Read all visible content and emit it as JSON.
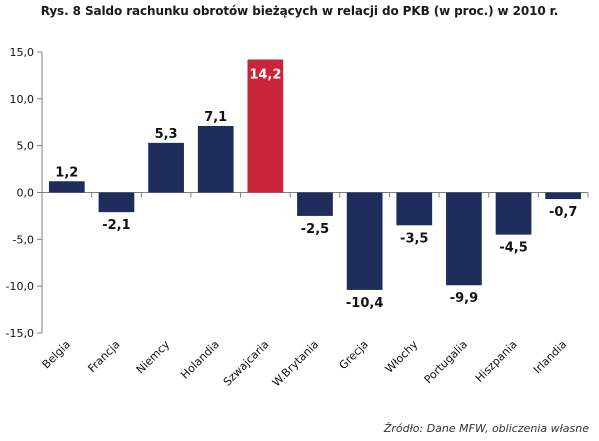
{
  "chart_data": {
    "type": "bar",
    "title": "Rys. 8 Saldo rachunku obrotów bieżących w relacji do PKB (w proc.) w 2010 r.",
    "xlabel": "",
    "ylabel": "",
    "ylim": [
      -15,
      15
    ],
    "yticks": [
      15,
      10,
      5,
      0,
      -5,
      -10,
      -15
    ],
    "ytick_labels": [
      "15,0",
      "10,0",
      "5,0",
      "0,0",
      "-5,0",
      "-10,0",
      "-15,0"
    ],
    "grid": false,
    "categories": [
      "Belgia",
      "Francja",
      "Niemcy",
      "Holandia",
      "Szwajcaria",
      "W.Brytania",
      "Grecja",
      "Włochy",
      "Portugalia",
      "Hiszpania",
      "Irlandia"
    ],
    "values": [
      1.2,
      -2.1,
      5.3,
      7.1,
      14.2,
      -2.5,
      -10.4,
      -3.5,
      -9.9,
      -4.5,
      -0.7
    ],
    "value_labels": [
      "1,2",
      "-2,1",
      "5,3",
      "7,1",
      "14,2",
      "-2,5",
      "-10,4",
      "-3,5",
      "-9,9",
      "-4,5",
      "-0,7"
    ],
    "highlight_category": "Szwajcaria",
    "colors": {
      "bar": "#1f2d5c",
      "highlight": "#c8243a",
      "axis": "#7f7f7f",
      "text": "#111111",
      "highlight_label": "#ffffff"
    },
    "source": "Źródło: Dane MFW, obliczenia własne"
  }
}
